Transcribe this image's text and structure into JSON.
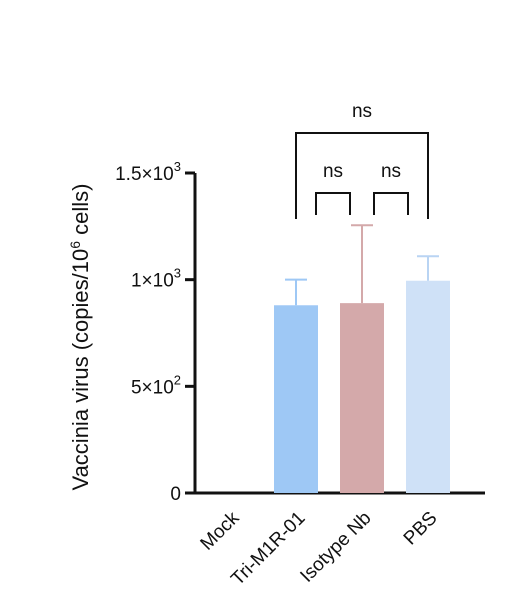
{
  "chart_data": {
    "type": "bar",
    "categories": [
      "Mock",
      "Tri-M1R-01",
      "Isotype Nb",
      "PBS"
    ],
    "values": [
      0,
      880,
      890,
      995
    ],
    "errors": [
      0,
      120,
      365,
      115
    ],
    "colors": [
      "#ffffff",
      "#9ec8f5",
      "#d4a9aa",
      "#cfe1f7"
    ],
    "error_colors": [
      "#ffffff",
      "#9ec8f5",
      "#d4a9aa",
      "#b9d4f3"
    ],
    "ylabel_main": "Vaccinia virus (copies/10",
    "ylabel_sup": "6",
    "ylabel_end": " cells)",
    "ylim": [
      0,
      1500
    ],
    "yticks": [
      {
        "value": 0,
        "base": "0",
        "exp": ""
      },
      {
        "value": 500,
        "base": "5×10",
        "exp": "2"
      },
      {
        "value": 1000,
        "base": "1×10",
        "exp": "3"
      },
      {
        "value": 1500,
        "base": "1.5×10",
        "exp": "3"
      }
    ],
    "significance": [
      {
        "from": 1,
        "to": 3,
        "label": "ns",
        "level": 2
      },
      {
        "from": 1,
        "to": 2,
        "label": "ns",
        "level": 1
      },
      {
        "from": 2,
        "to": 3,
        "label": "ns",
        "level": 1
      }
    ],
    "grid": false,
    "legend": "none"
  }
}
